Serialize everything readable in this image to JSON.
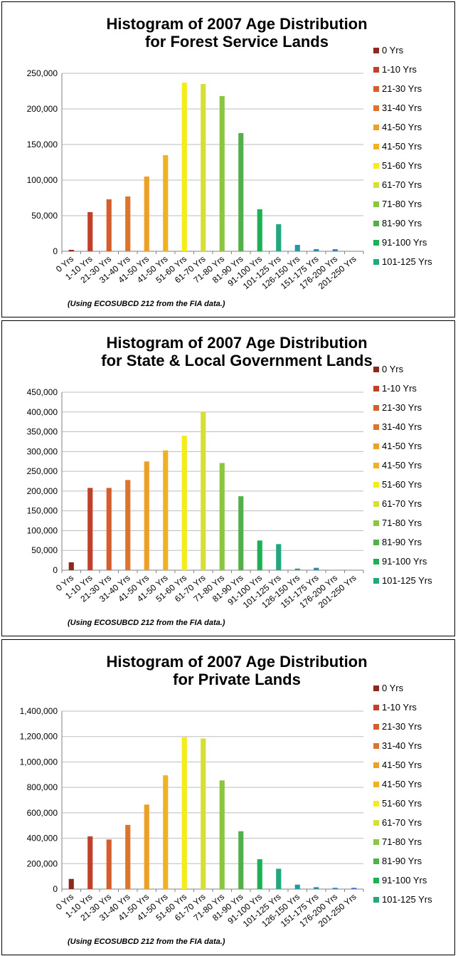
{
  "chart_data": [
    {
      "type": "bar",
      "title": [
        "Histogram of 2007 Age Distribution",
        "for Forest Service Lands"
      ],
      "categories": [
        "0 Yrs",
        "1-10 Yrs",
        "21-30 Yrs",
        "31-40 Yrs",
        "41-50 Yrs",
        "41-50 Yrs",
        "51-60 Yrs",
        "61-70 Yrs",
        "71-80 Yrs",
        "81-90 Yrs",
        "91-100 Yrs",
        "101-125 Yrs",
        "126-150 Yrs",
        "151-175 Yrs",
        "176-200 Yrs",
        "201-250 Yrs"
      ],
      "legend": [
        "0 Yrs",
        "1-10 Yrs",
        "21-30 Yrs",
        "31-40 Yrs",
        "41-50 Yrs",
        "41-50 Yrs",
        "51-60 Yrs",
        "61-70 Yrs",
        "71-80 Yrs",
        "81-90 Yrs",
        "91-100 Yrs",
        "101-125 Yrs"
      ],
      "values": [
        2000,
        55000,
        73000,
        77000,
        105000,
        135000,
        237000,
        235000,
        218000,
        166000,
        59000,
        38000,
        9000,
        3000,
        3000,
        0
      ],
      "yticks": [
        "0",
        "50,000",
        "100,000",
        "150,000",
        "200,000",
        "250,000"
      ],
      "ylim": [
        0,
        250000
      ],
      "legend_position": "right",
      "note": "(Using ECOSUBCD 212 from the FIA data.)"
    },
    {
      "type": "bar",
      "title": [
        "Histogram of 2007 Age Distribution",
        "for State & Local Government Lands"
      ],
      "categories": [
        "0 Yrs",
        "1-10 Yrs",
        "21-30 Yrs",
        "31-40 Yrs",
        "41-50 Yrs",
        "41-50 Yrs",
        "51-60 Yrs",
        "61-70 Yrs",
        "71-80 Yrs",
        "81-90 Yrs",
        "91-100 Yrs",
        "101-125 Yrs",
        "126-150 Yrs",
        "151-175 Yrs",
        "176-200 Yrs",
        "201-250 Yrs"
      ],
      "legend": [
        "0 Yrs",
        "1-10 Yrs",
        "21-30 Yrs",
        "31-40 Yrs",
        "41-50 Yrs",
        "41-50 Yrs",
        "51-60 Yrs",
        "61-70 Yrs",
        "71-80 Yrs",
        "81-90 Yrs",
        "91-100 Yrs",
        "101-125 Yrs"
      ],
      "values": [
        20000,
        208000,
        208000,
        228000,
        275000,
        303000,
        340000,
        400000,
        271000,
        187000,
        75000,
        66000,
        4000,
        6000,
        0,
        0
      ],
      "yticks": [
        "0",
        "50,000",
        "100,000",
        "150,000",
        "200,000",
        "250,000",
        "300,000",
        "350,000",
        "400,000",
        "450,000"
      ],
      "ylim": [
        0,
        450000
      ],
      "legend_position": "right",
      "note": "(Using ECOSUBCD 212 from the FIA data.)"
    },
    {
      "type": "bar",
      "title": [
        "Histogram of 2007 Age Distribution",
        "for Private Lands"
      ],
      "categories": [
        "0 Yrs",
        "1-10 Yrs",
        "21-30 Yrs",
        "31-40 Yrs",
        "41-50 Yrs",
        "41-50 Yrs",
        "51-60 Yrs",
        "61-70 Yrs",
        "71-80 Yrs",
        "81-90 Yrs",
        "91-100 Yrs",
        "101-125 Yrs",
        "126-150 Yrs",
        "151-175 Yrs",
        "176-200 Yrs",
        "201-250 Yrs"
      ],
      "legend": [
        "0 Yrs",
        "1-10 Yrs",
        "21-30 Yrs",
        "31-40 Yrs",
        "41-50 Yrs",
        "41-50 Yrs",
        "51-60 Yrs",
        "61-70 Yrs",
        "71-80 Yrs",
        "81-90 Yrs",
        "91-100 Yrs",
        "101-125 Yrs"
      ],
      "values": [
        80000,
        415000,
        390000,
        505000,
        665000,
        895000,
        1195000,
        1185000,
        855000,
        455000,
        235000,
        160000,
        35000,
        15000,
        10000,
        10000
      ],
      "yticks": [
        "0",
        "200,000",
        "400,000",
        "600,000",
        "800,000",
        "1,000,000",
        "1,200,000",
        "1,400,000"
      ],
      "ylim": [
        0,
        1400000
      ],
      "legend_position": "right",
      "note": "(Using ECOSUBCD 212 from the FIA data.)"
    }
  ],
  "colors": [
    "#8b2a1c",
    "#c0402a",
    "#d45f2c",
    "#dc742d",
    "#eca028",
    "#f0b224",
    "#f5ec1c",
    "#d6e034",
    "#8cc53f",
    "#52b04a",
    "#1fb055",
    "#22a77f",
    "#229aa0",
    "#2a8ab0",
    "#3f7fb8",
    "#4a6fbf"
  ]
}
